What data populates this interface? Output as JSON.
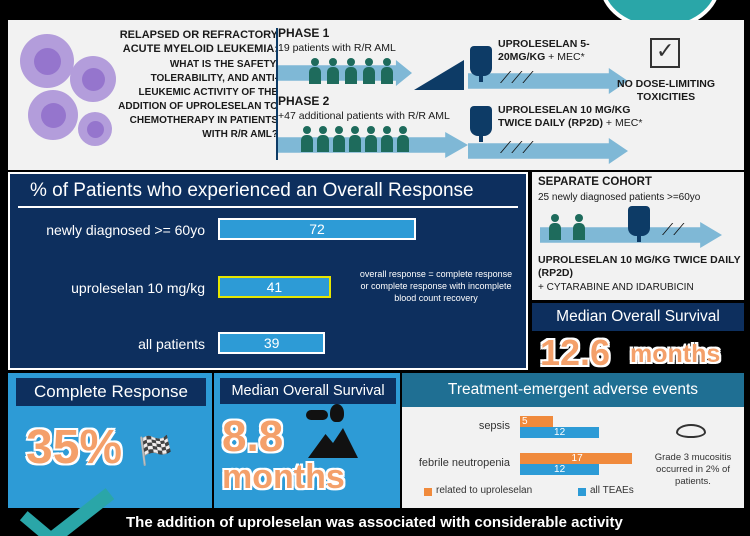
{
  "header": {
    "question_title": "RELAPSED OR REFRACTORY ACUTE MYELOID LEUKEMIA:",
    "question_body": "WHAT IS THE SAFETY, TOLERABILITY, AND ANTI-LEUKEMIC ACTIVITY OF THE ADDITION OF UPROLESELAN TO CHEMOTHERAPY IN PATIENTS WITH R/R AML?",
    "phase1_title": "PHASE 1",
    "phase1_sub": "19 patients with R/R AML",
    "phase1_drug_a": "UPROLESELAN 5-20MG/KG",
    "phase1_drug_b": " + MEC*",
    "phase2_title": "PHASE 2",
    "phase2_sub": "+47 additional patients with R/R AML",
    "phase2_drug_a": "UPROLESELAN 10 MG/KG TWICE DAILY (RP2D)",
    "phase2_drug_b": " + MEC*",
    "dlt": "NO DOSE-LIMITING TOXICITIES"
  },
  "response": {
    "title": "% of Patients who experienced an Overall Response",
    "note": "overall response = complete response or complete response with incomplete blood count recovery",
    "colors": {
      "bar": "#2d9bd6",
      "highlight_border": "#e6e600"
    }
  },
  "chart_data": {
    "type": "bar",
    "orientation": "horizontal",
    "title": "% of Patients who experienced an Overall Response",
    "categories": [
      "newly diagnosed >= 60yo",
      "uproleselan 10 mg/kg",
      "all patients"
    ],
    "values": [
      72,
      41,
      39
    ],
    "xlim": [
      0,
      100
    ]
  },
  "separate_cohort": {
    "title": "SEPARATE COHORT",
    "sub": "25 newly diagnosed patients >=60yo",
    "drug_a": "UPROLESELAN 10 MG/KG TWICE DAILY (RP2D)",
    "drug_b": "+ CYTARABINE AND IDARUBICIN"
  },
  "mos_right": {
    "label": "Median Overall Survival",
    "value": "12.6",
    "unit": "months"
  },
  "complete_response": {
    "label": "Complete Response",
    "value": "35%"
  },
  "mos_left": {
    "label": "Median Overall Survival",
    "value": "8.8",
    "unit": "months"
  },
  "teae": {
    "title": "Treatment-emergent adverse events",
    "rows": [
      {
        "label": "sepsis",
        "related": 5,
        "all": 12
      },
      {
        "label": "febrile neutropenia",
        "related": 17,
        "all": 12
      }
    ],
    "legend_related": "related to uproleselan",
    "legend_all": "all TEAEs",
    "mucositis_note": "Grade 3 mucositis occurred in 2% of patients.",
    "colors": {
      "related": "#f08a3c",
      "all": "#2d9bd6"
    }
  },
  "footer": {
    "text": "The addition of uproleselan was associated with considerable activity"
  }
}
